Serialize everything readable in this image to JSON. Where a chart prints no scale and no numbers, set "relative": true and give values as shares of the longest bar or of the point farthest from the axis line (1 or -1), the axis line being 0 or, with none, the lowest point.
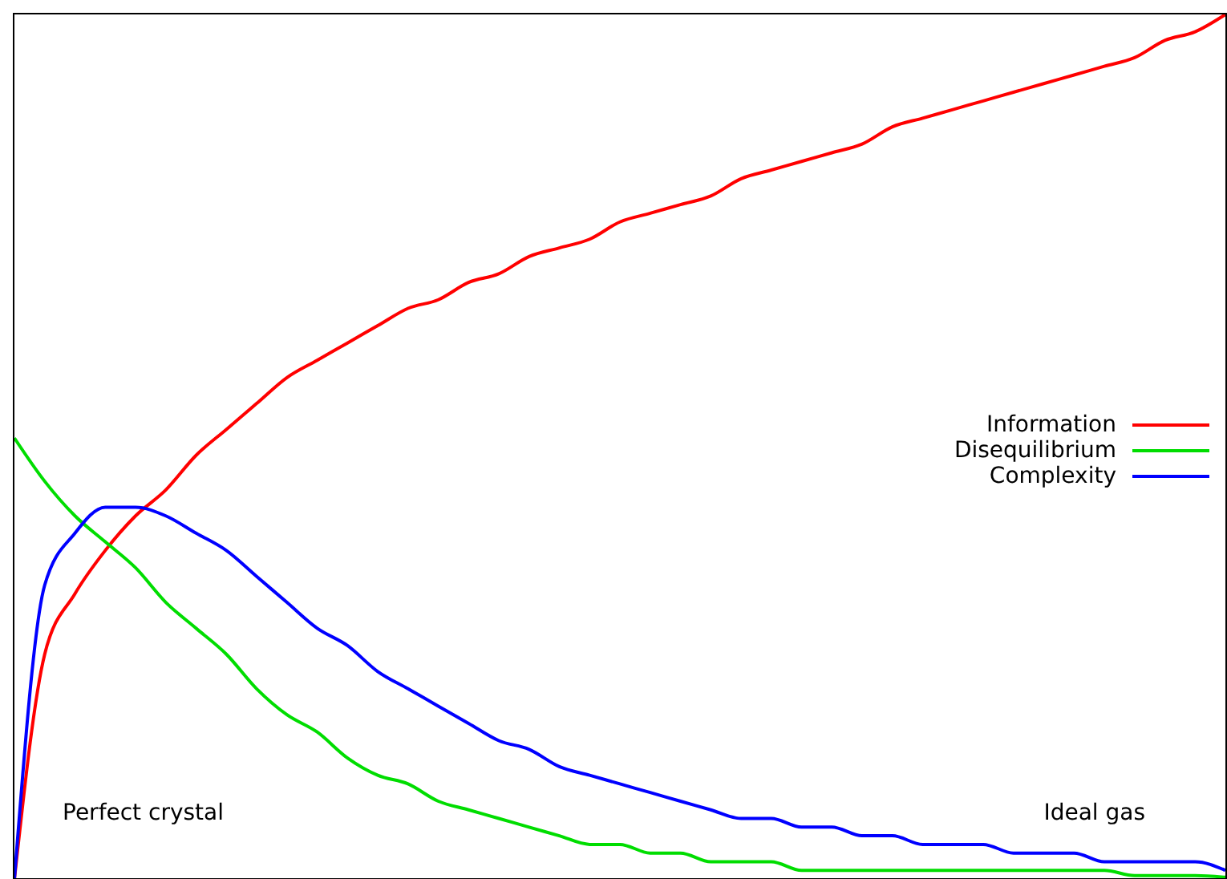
{
  "chart_data": {
    "type": "line",
    "relative": true,
    "legend": "right",
    "categories": [
      null,
      null,
      null,
      null,
      null,
      null,
      null,
      null,
      null,
      null,
      null,
      null,
      null,
      null,
      null,
      null,
      null,
      null,
      null,
      null,
      null,
      null,
      null,
      null,
      null,
      null,
      null,
      null,
      null,
      null,
      null,
      null,
      null,
      null,
      null,
      null,
      null,
      null,
      null,
      null,
      null
    ],
    "series": [
      {
        "name": "Information",
        "color": "#ff0000",
        "values": [
          0,
          0.26,
          0.33,
          0.38,
          0.42,
          0.45,
          0.49,
          0.52,
          0.55,
          0.58,
          0.6,
          0.62,
          0.64,
          0.66,
          0.67,
          0.69,
          0.7,
          0.72,
          0.73,
          0.74,
          0.76,
          0.77,
          0.78,
          0.79,
          0.81,
          0.82,
          0.83,
          0.84,
          0.85,
          0.87,
          0.88,
          0.89,
          0.9,
          0.91,
          0.92,
          0.93,
          0.94,
          0.95,
          0.97,
          0.98,
          1
        ]
      },
      {
        "name": "Disequilibrium",
        "color": "#00dd00",
        "values": [
          0.51,
          0.46,
          0.42,
          0.39,
          0.36,
          0.32,
          0.29,
          0.26,
          0.22,
          0.19,
          0.17,
          0.14,
          0.12,
          0.11,
          0.09,
          0.08,
          0.07,
          0.06,
          0.05,
          0.04,
          0.04,
          0.03,
          0.03,
          0.02,
          0.02,
          0.02,
          0.01,
          0.01,
          0.01,
          0.01,
          0.01,
          0.01,
          0.01,
          0.01,
          0.01,
          0.01,
          0.01,
          0.004,
          0.004,
          0.004,
          0.002
        ]
      },
      {
        "name": "Complexity",
        "color": "#0000ff",
        "values": [
          0,
          0.34,
          0.4,
          0.43,
          0.43,
          0.42,
          0.4,
          0.38,
          0.35,
          0.32,
          0.29,
          0.27,
          0.24,
          0.22,
          0.2,
          0.18,
          0.16,
          0.15,
          0.13,
          0.12,
          0.11,
          0.1,
          0.09,
          0.08,
          0.07,
          0.07,
          0.06,
          0.06,
          0.05,
          0.05,
          0.04,
          0.04,
          0.04,
          0.03,
          0.03,
          0.03,
          0.02,
          0.02,
          0.02,
          0.02,
          0.01
        ]
      }
    ],
    "annotations": [
      "Perfect crystal",
      "Ideal gas"
    ]
  }
}
